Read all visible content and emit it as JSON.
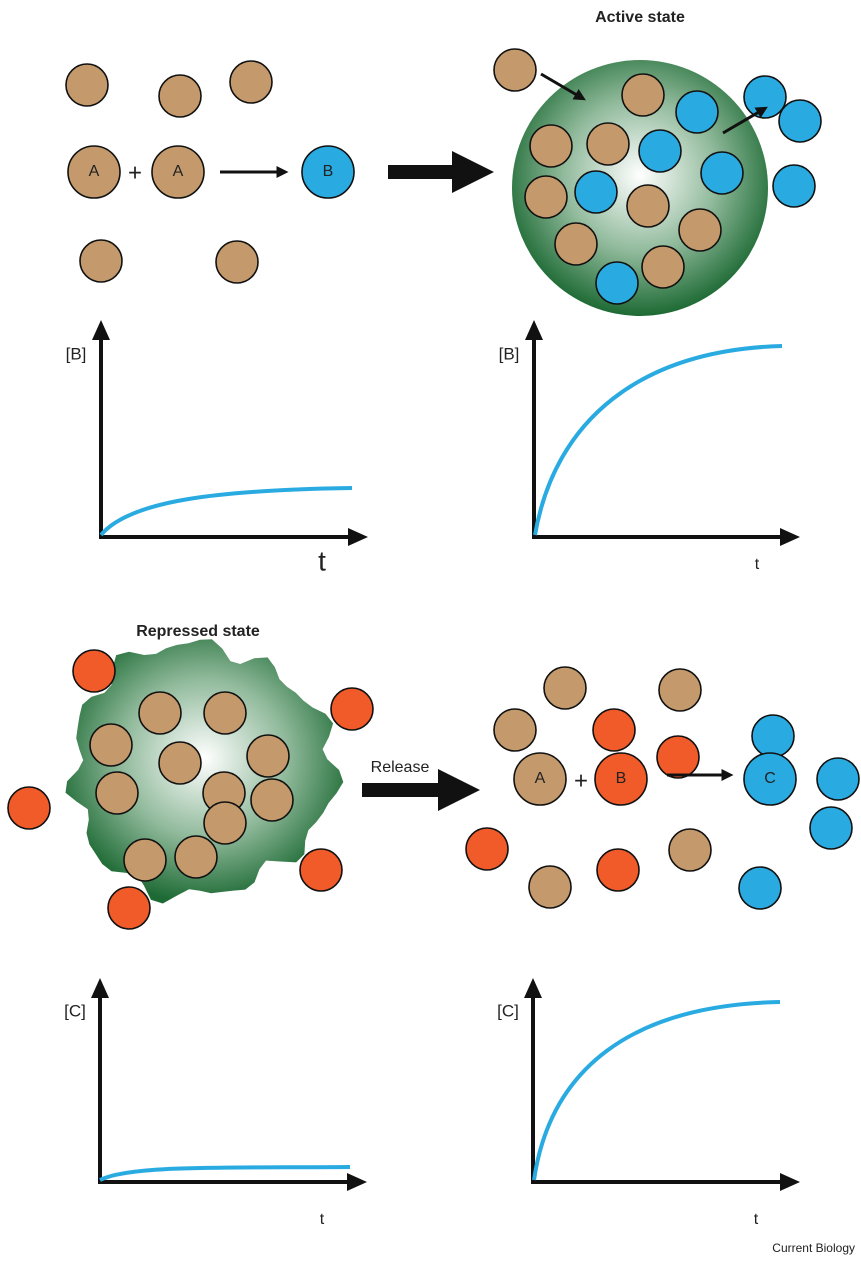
{
  "top_left": {
    "reaction": {
      "reactant_1": "A",
      "plus": "+",
      "reactant_2": "A",
      "product": "B"
    },
    "plot": {
      "y_label": "[B]",
      "x_label": "t"
    }
  },
  "top_right": {
    "title": "Active state",
    "plot": {
      "y_label": "[B]",
      "x_label": "t"
    }
  },
  "bottom_left": {
    "title": "Repressed state",
    "plot": {
      "y_label": "[C]",
      "x_label": "t"
    }
  },
  "release_label": "Release",
  "bottom_right": {
    "reaction": {
      "reactant_1": "A",
      "plus": "+",
      "reactant_2": "B",
      "product": "C"
    },
    "plot": {
      "y_label": "[C]",
      "x_label": "t"
    }
  },
  "footer": "Current Biology"
}
